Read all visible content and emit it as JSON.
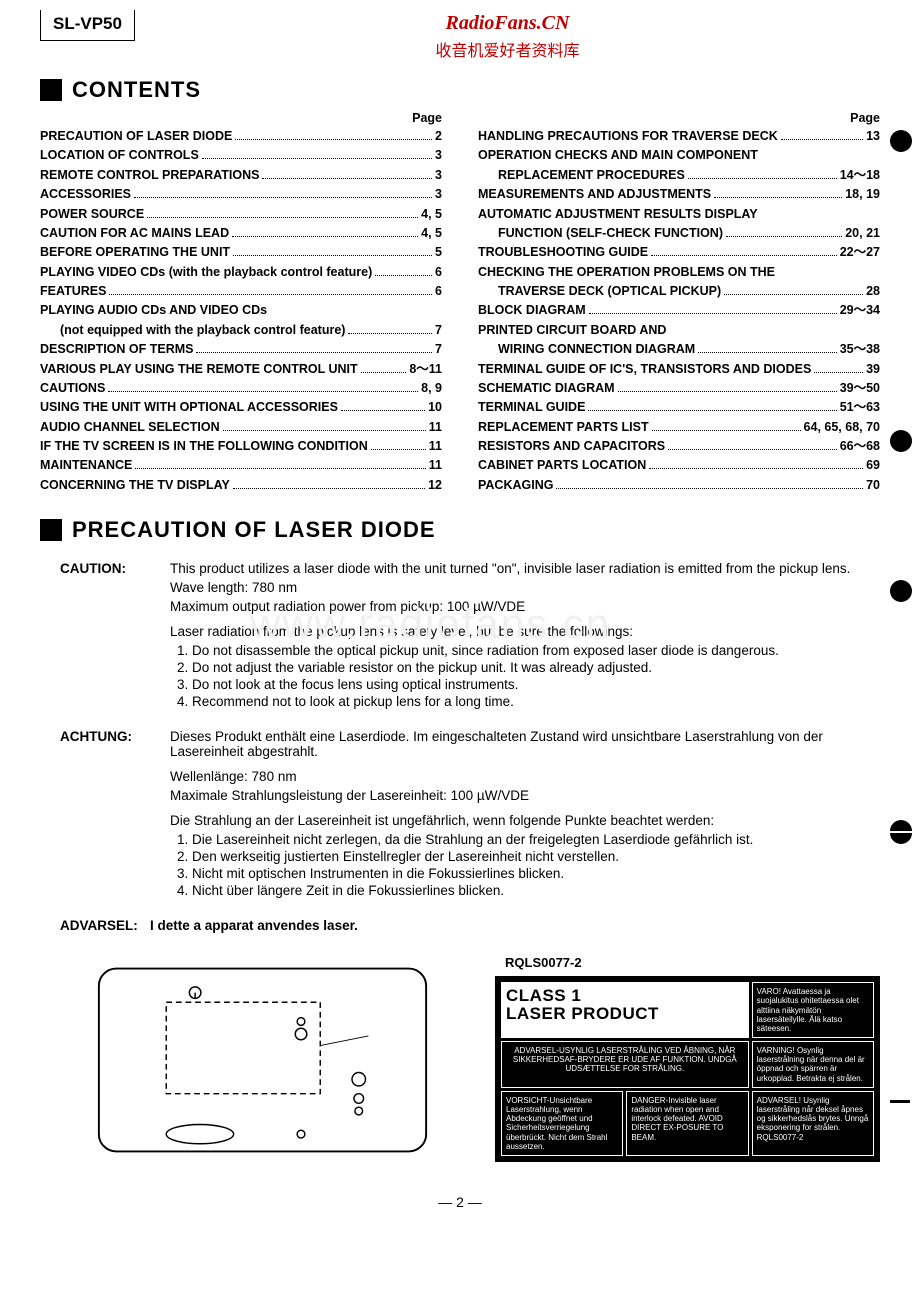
{
  "model": "SL-VP50",
  "site": {
    "name": "RadioFans.CN",
    "subtitle": "收音机爱好者资料库"
  },
  "watermark": "www.radiofans.cn",
  "section_contents": "CONTENTS",
  "section_precaution": "PRECAUTION OF LASER DIODE",
  "page_header": "Page",
  "page_number": "— 2 —",
  "toc_left": [
    {
      "label": "PRECAUTION OF LASER DIODE",
      "page": "2"
    },
    {
      "label": "LOCATION OF CONTROLS",
      "page": "3"
    },
    {
      "label": "REMOTE CONTROL PREPARATIONS",
      "page": "3"
    },
    {
      "label": "ACCESSORIES",
      "page": "3"
    },
    {
      "label": "POWER SOURCE",
      "page": "4, 5"
    },
    {
      "label": "CAUTION FOR AC MAINS LEAD",
      "page": "4, 5"
    },
    {
      "label": "BEFORE OPERATING THE UNIT",
      "page": "5"
    },
    {
      "label": "PLAYING VIDEO CDs (with the playback control feature)",
      "page": "6"
    },
    {
      "label": "FEATURES",
      "page": "6"
    },
    {
      "label": "PLAYING AUDIO CDs AND VIDEO CDs",
      "page": "",
      "nolead": true
    },
    {
      "label": "(not equipped with the playback control feature)",
      "page": "7",
      "sub": true
    },
    {
      "label": "DESCRIPTION OF TERMS",
      "page": "7"
    },
    {
      "label": "VARIOUS PLAY USING THE REMOTE CONTROL UNIT",
      "page": "8～11"
    },
    {
      "label": "CAUTIONS",
      "page": "8, 9"
    },
    {
      "label": "USING THE UNIT WITH OPTIONAL ACCESSORIES",
      "page": "10"
    },
    {
      "label": "AUDIO CHANNEL SELECTION",
      "page": "11"
    },
    {
      "label": "IF THE TV SCREEN IS IN THE FOLLOWING CONDITION",
      "page": "11"
    },
    {
      "label": "MAINTENANCE",
      "page": "11"
    },
    {
      "label": "CONCERNING THE TV DISPLAY",
      "page": "12"
    }
  ],
  "toc_right": [
    {
      "label": "HANDLING PRECAUTIONS FOR TRAVERSE DECK",
      "page": "13"
    },
    {
      "label": "OPERATION CHECKS AND MAIN COMPONENT",
      "page": "",
      "nolead": true
    },
    {
      "label": "REPLACEMENT PROCEDURES",
      "page": "14～18",
      "sub": true
    },
    {
      "label": "MEASUREMENTS AND ADJUSTMENTS",
      "page": "18, 19"
    },
    {
      "label": "AUTOMATIC ADJUSTMENT RESULTS DISPLAY",
      "page": "",
      "nolead": true
    },
    {
      "label": "FUNCTION (SELF-CHECK FUNCTION)",
      "page": "20, 21",
      "sub": true
    },
    {
      "label": "TROUBLESHOOTING GUIDE",
      "page": "22～27"
    },
    {
      "label": "CHECKING THE OPERATION PROBLEMS ON THE",
      "page": "",
      "nolead": true
    },
    {
      "label": "TRAVERSE DECK (OPTICAL PICKUP)",
      "page": "28",
      "sub": true
    },
    {
      "label": "BLOCK DIAGRAM",
      "page": "29～34"
    },
    {
      "label": "PRINTED CIRCUIT BOARD AND",
      "page": "",
      "nolead": true
    },
    {
      "label": "WIRING CONNECTION DIAGRAM",
      "page": "35～38",
      "sub": true
    },
    {
      "label": "TERMINAL GUIDE OF IC'S, TRANSISTORS AND DIODES",
      "page": "39"
    },
    {
      "label": "SCHEMATIC DIAGRAM",
      "page": "39～50"
    },
    {
      "label": "TERMINAL GUIDE",
      "page": "51～63"
    },
    {
      "label": "REPLACEMENT PARTS LIST",
      "page": "64, 65, 68, 70"
    },
    {
      "label": "RESISTORS AND CAPACITORS",
      "page": "66～68"
    },
    {
      "label": "CABINET PARTS LOCATION",
      "page": "69"
    },
    {
      "label": "PACKAGING",
      "page": "70"
    }
  ],
  "precaution": {
    "caution_label": "CAUTION:",
    "caution_p1": "This product utilizes a laser diode with the unit turned \"on\", invisible laser radiation is emitted from the pickup lens.",
    "caution_p2": "Wave length: 780 nm",
    "caution_p3": "Maximum output radiation power from pickup: 100 µW/VDE",
    "caution_p4": "Laser radiation from the pickup lens is safety level, but be sure the followings:",
    "caution_list": [
      "Do not disassemble the optical pickup unit, since radiation from exposed laser diode is dangerous.",
      "Do not adjust the variable resistor on the pickup unit.  It was already adjusted.",
      "Do not look at the focus lens using optical instruments.",
      "Recommend not to look at pickup lens for a long time."
    ],
    "achtung_label": "ACHTUNG:",
    "achtung_p1": "Dieses Produkt enthält eine Laserdiode.  Im eingeschalteten Zustand wird unsichtbare Laserstrahlung von der Lasereinheit abgestrahlt.",
    "achtung_p2": "Wellenlänge: 780 nm",
    "achtung_p3": "Maximale Strahlungsleistung der Lasereinheit: 100 µW/VDE",
    "achtung_p4": "Die Strahlung an der Lasereinheit ist ungefährlich, wenn folgende Punkte beachtet werden:",
    "achtung_list": [
      "Die Lasereinheit nicht zerlegen, da die Strahlung an der freigelegten Laserdiode gefährlich ist.",
      "Den werkseitig justierten Einstellregler der Lasereinheit nicht verstellen.",
      "Nicht mit optischen Instrumenten in die Fokussierlines blicken.",
      "Nicht über längere Zeit in die Fokussierlines blicken."
    ],
    "advarsel_label": "ADVARSEL:",
    "advarsel_text": "I dette a apparat anvendes laser."
  },
  "label_fig": {
    "code": "RQLS0077-2",
    "class1": "CLASS 1\nLASER PRODUCT",
    "varo": "VARO! Avattaessa ja suojalukitus ohitettaessa olet alttiina näkymätön lasersäteilylle. Älä katso säteesen.",
    "advarsel_dk": "ADVARSEL-USYNLIG LASERSTRÅLING VED ÅBNING, NÅR SIKKERHEDSAF-BRYDERE ER UDE AF FUNKTION. UNDGÅ UDSÆTTELSE FOR STRÅLING.",
    "varning": "VARNING! Osynlig laserstrålning när denna del är öppnad och spärren är urkopplad. Betrakta ej strålen.",
    "vorsicht": "VORSICHT-Unsichtbare Laserstrahlung, wenn Abdeckung geöffnet und Sicherheitsverriegelung überbrückt. Nicht dem Strahl aussetzen.",
    "danger": "DANGER-Invisible laser radiation when open and interlock defeated. AVOID DIRECT EX-POSURE TO BEAM.",
    "advarsel_no": "ADVARSEL! Usynlig laserstråling når deksel åpnes og sikkerhedslås brytes. Unngå eksponering for strålen. RQLS0077-2"
  }
}
